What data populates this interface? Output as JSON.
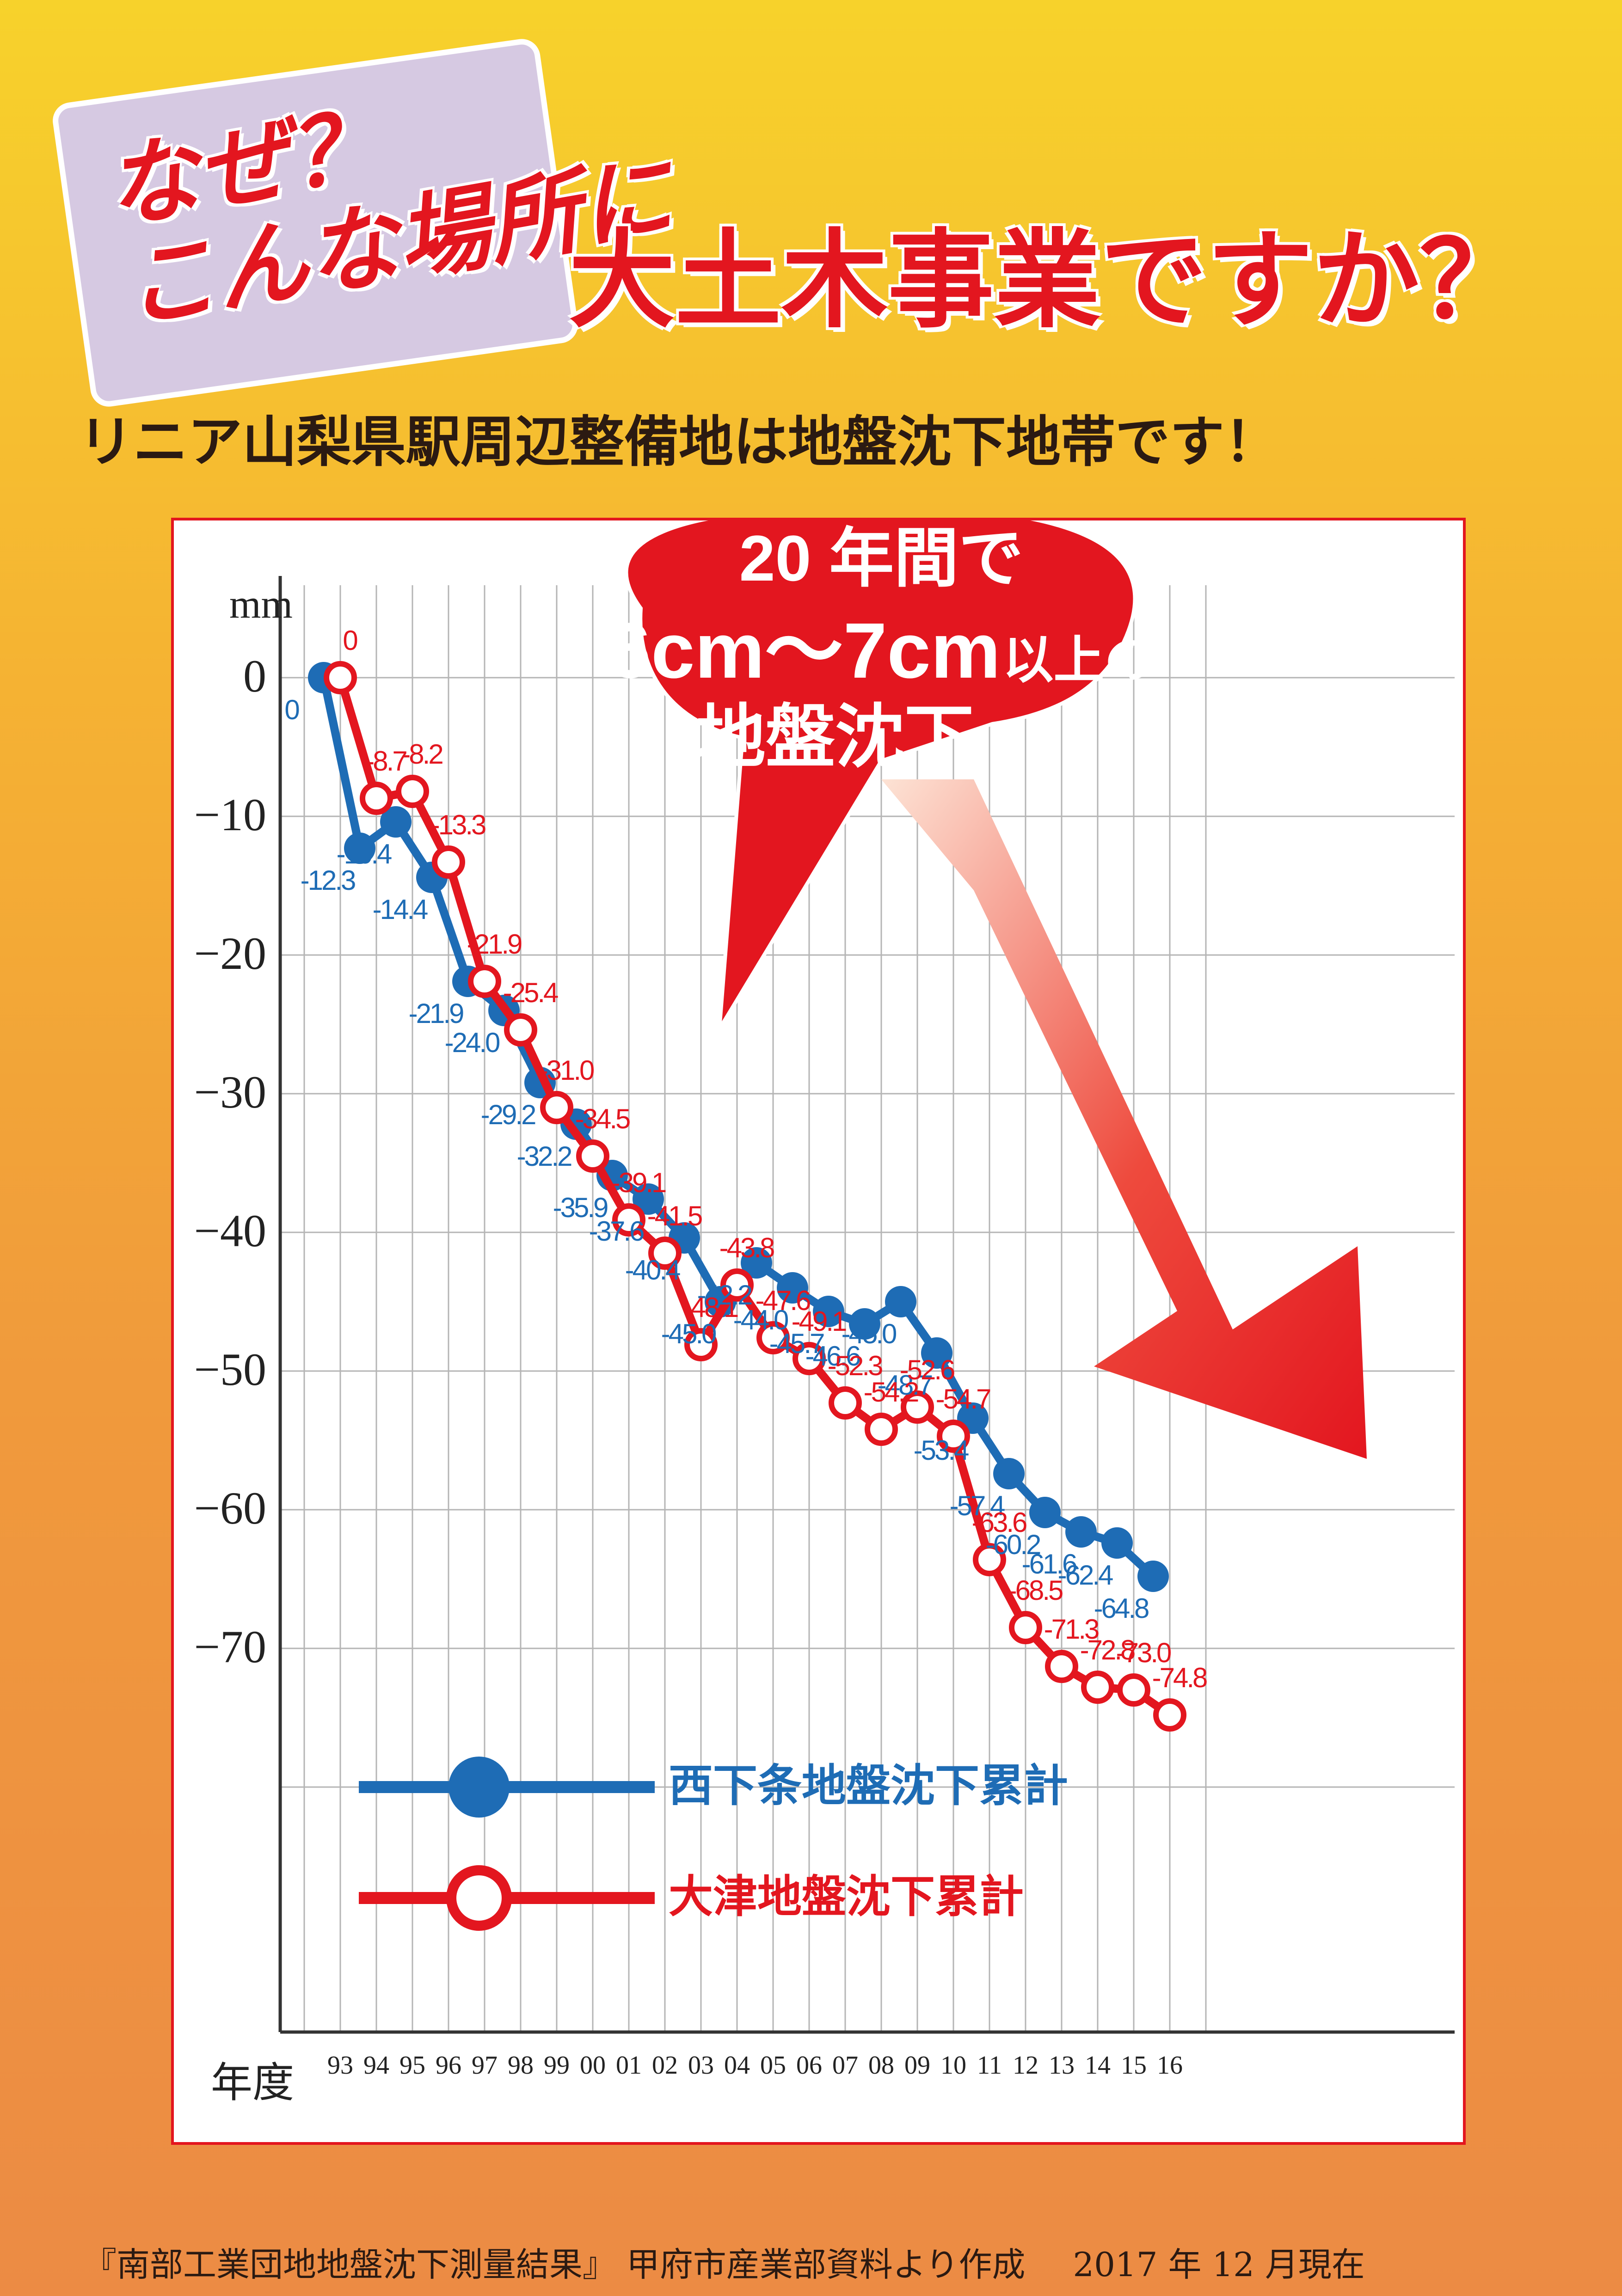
{
  "headline": {
    "line1": "なぜ？",
    "line2": "こんな場所に",
    "main": "大土木事業ですか？"
  },
  "subtitle": "リニア山梨県駅周辺整備地は地盤沈下地帯です！",
  "callout": {
    "line1": "20 年間で",
    "line2_main": "6cm〜7cm",
    "line2_small": "以上の",
    "line3": "地盤沈下"
  },
  "footer": {
    "source": "『南部工業団地地盤沈下測量結果』 甲府市産業部資料より作成",
    "date": "2017 年 12 月現在"
  },
  "colors": {
    "blue": "#1e6cb5",
    "red": "#e3161f",
    "grid": "#b5b5b5",
    "axis": "#333333"
  },
  "chart_data": {
    "type": "line",
    "ylabel": "mm",
    "xlabel": "年度",
    "ylim": [
      -80,
      5
    ],
    "yticks": [
      0,
      -10,
      -20,
      -30,
      -40,
      -50,
      -60,
      -70
    ],
    "ytick_labels": [
      "0",
      "−10",
      "−20",
      "−30",
      "−40",
      "−50",
      "−60",
      "−70"
    ],
    "categories": [
      "93",
      "94",
      "95",
      "96",
      "97",
      "98",
      "99",
      "00",
      "01",
      "02",
      "03",
      "04",
      "05",
      "06",
      "07",
      "08",
      "09",
      "10",
      "11",
      "12",
      "13",
      "14",
      "15",
      "16"
    ],
    "grid": true,
    "legend_position": "bottom-left",
    "series": [
      {
        "name": "西下条地盤沈下累計",
        "color": "#1e6cb5",
        "marker": "filled",
        "values": [
          0,
          -12.3,
          -10.4,
          -14.4,
          -21.9,
          -24.0,
          -29.2,
          -32.2,
          -35.9,
          -37.6,
          -40.4,
          -45.0,
          -42.2,
          -44.0,
          -45.7,
          -46.6,
          -45.0,
          -48.7,
          -53.4,
          -57.4,
          -60.2,
          -61.6,
          -62.4,
          -64.8
        ],
        "labels": [
          "0",
          "-12.3",
          "-10.4",
          "-14.4",
          "-21.9",
          "-24.0",
          "-29.2",
          "-32.2",
          "-35.9",
          "-37.6",
          "-40.4",
          "-45.0",
          "-42.2",
          "-44.0",
          "-45.7",
          "-46.6",
          "-45.0",
          "-48.7",
          "-53.4",
          "-57.4",
          "-60.2",
          "-61.6",
          "-62.4",
          "-64.8"
        ]
      },
      {
        "name": "大津地盤沈下累計",
        "color": "#e3161f",
        "marker": "hollow",
        "values": [
          0,
          -8.7,
          -8.2,
          -13.3,
          -21.9,
          -25.4,
          -31.0,
          -34.5,
          -39.1,
          -41.5,
          -48.1,
          -43.8,
          -47.6,
          -49.1,
          -52.3,
          -54.2,
          -52.6,
          -54.7,
          -63.6,
          -68.5,
          -71.3,
          -72.8,
          -73.0,
          -74.8
        ],
        "labels": [
          "0",
          "-8.7",
          "-8.2",
          "-13.3",
          "-21.9",
          "-25.4",
          "-31.0",
          "-34.5",
          "-39.1",
          "-41.5",
          "-48.1",
          "-43.8",
          "-47.6",
          "-49.1",
          "-52.3",
          "-54.2",
          "-52.6",
          "-54.7",
          "-63.6",
          "-68.5",
          "-71.3",
          "-72.8",
          "-73.0",
          "-74.8"
        ]
      }
    ]
  }
}
